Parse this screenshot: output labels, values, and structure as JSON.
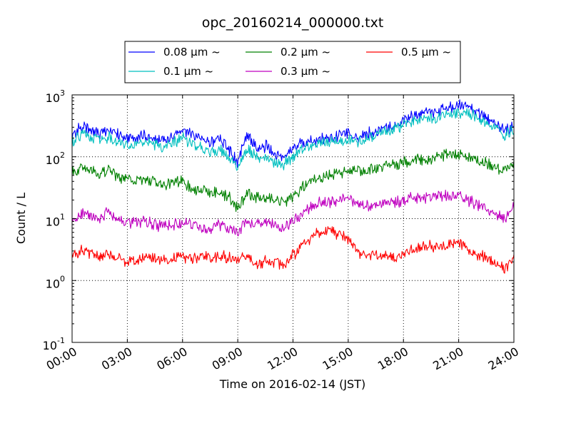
{
  "chart_data": {
    "type": "line",
    "title": "opc_20160214_000000.txt",
    "xlabel": "Time on 2016-02-14 (JST)",
    "ylabel": "Count / L",
    "xlim_hours": [
      0,
      24
    ],
    "ylim": [
      0.1,
      1000
    ],
    "yscale": "log",
    "grid": true,
    "legend_position": "top-center",
    "xticks": [
      "00:00",
      "03:00",
      "06:00",
      "09:00",
      "12:00",
      "15:00",
      "18:00",
      "21:00",
      "24:00"
    ],
    "yticks": [
      {
        "base": "10",
        "exp": "-1"
      },
      {
        "base": "10",
        "exp": "0"
      },
      {
        "base": "10",
        "exp": "1"
      },
      {
        "base": "10",
        "exp": "2"
      },
      {
        "base": "10",
        "exp": "3"
      }
    ],
    "x_hours": [
      0,
      0.5,
      1,
      1.5,
      2,
      2.5,
      3,
      3.5,
      4,
      4.5,
      5,
      5.5,
      6,
      6.5,
      7,
      7.5,
      8,
      8.5,
      9,
      9.5,
      10,
      10.5,
      11,
      11.5,
      12,
      12.5,
      13,
      13.5,
      14,
      14.5,
      15,
      15.5,
      16,
      16.5,
      17,
      17.5,
      18,
      18.5,
      19,
      19.5,
      20,
      20.5,
      21,
      21.5,
      22,
      22.5,
      23,
      23.5,
      24
    ],
    "series": [
      {
        "name": "0.08 μm ~",
        "color": "#0000ff",
        "values": [
          200,
          330,
          260,
          240,
          280,
          230,
          200,
          190,
          230,
          200,
          180,
          220,
          280,
          230,
          200,
          160,
          200,
          140,
          80,
          230,
          140,
          150,
          110,
          100,
          140,
          170,
          180,
          190,
          200,
          220,
          250,
          210,
          230,
          260,
          300,
          320,
          380,
          460,
          500,
          520,
          560,
          620,
          700,
          640,
          520,
          430,
          340,
          260,
          320
        ]
      },
      {
        "name": "0.1 μm ~",
        "color": "#00bfbf",
        "values": [
          170,
          230,
          210,
          200,
          210,
          180,
          160,
          155,
          170,
          160,
          140,
          170,
          200,
          170,
          140,
          120,
          130,
          100,
          65,
          130,
          100,
          95,
          80,
          75,
          100,
          130,
          150,
          160,
          170,
          180,
          200,
          170,
          190,
          220,
          250,
          270,
          320,
          370,
          400,
          420,
          450,
          500,
          540,
          500,
          430,
          360,
          290,
          220,
          270
        ]
      },
      {
        "name": "0.2 μm ~",
        "color": "#008000",
        "values": [
          55,
          65,
          58,
          55,
          62,
          48,
          45,
          40,
          42,
          38,
          35,
          38,
          40,
          32,
          28,
          25,
          27,
          22,
          15,
          25,
          22,
          20,
          21,
          19,
          22,
          32,
          40,
          45,
          50,
          55,
          62,
          58,
          60,
          66,
          72,
          76,
          80,
          88,
          92,
          94,
          100,
          108,
          110,
          100,
          90,
          80,
          70,
          62,
          75
        ]
      },
      {
        "name": "0.3 μm ~",
        "color": "#bf00bf",
        "values": [
          10,
          12,
          11,
          10,
          13,
          10,
          9,
          8.5,
          9,
          8,
          7.5,
          8,
          9,
          8,
          7.5,
          7,
          8,
          7,
          6,
          9,
          8,
          9,
          8,
          7.5,
          9,
          12,
          16,
          18,
          19,
          20,
          22,
          18,
          16,
          17,
          17,
          18,
          20,
          21,
          22,
          22,
          23,
          24,
          22,
          20,
          17,
          14,
          12,
          10,
          16
        ]
      },
      {
        "name": "0.5 μm ~",
        "color": "#ff0000",
        "values": [
          2.5,
          3.2,
          2.8,
          2.4,
          2.6,
          2.3,
          2.0,
          2.1,
          2.4,
          2.2,
          2.1,
          2.3,
          2.5,
          2.3,
          2.4,
          2.3,
          2.5,
          2.3,
          2.1,
          2.4,
          1.8,
          2.1,
          2.0,
          1.8,
          2.6,
          3.5,
          5.0,
          6.0,
          6.5,
          5.5,
          4.5,
          3.0,
          2.6,
          2.5,
          2.4,
          2.3,
          2.6,
          3.1,
          3.4,
          3.6,
          3.7,
          3.9,
          4.2,
          3.0,
          2.6,
          2.3,
          2.0,
          1.6,
          2.2
        ]
      }
    ]
  }
}
